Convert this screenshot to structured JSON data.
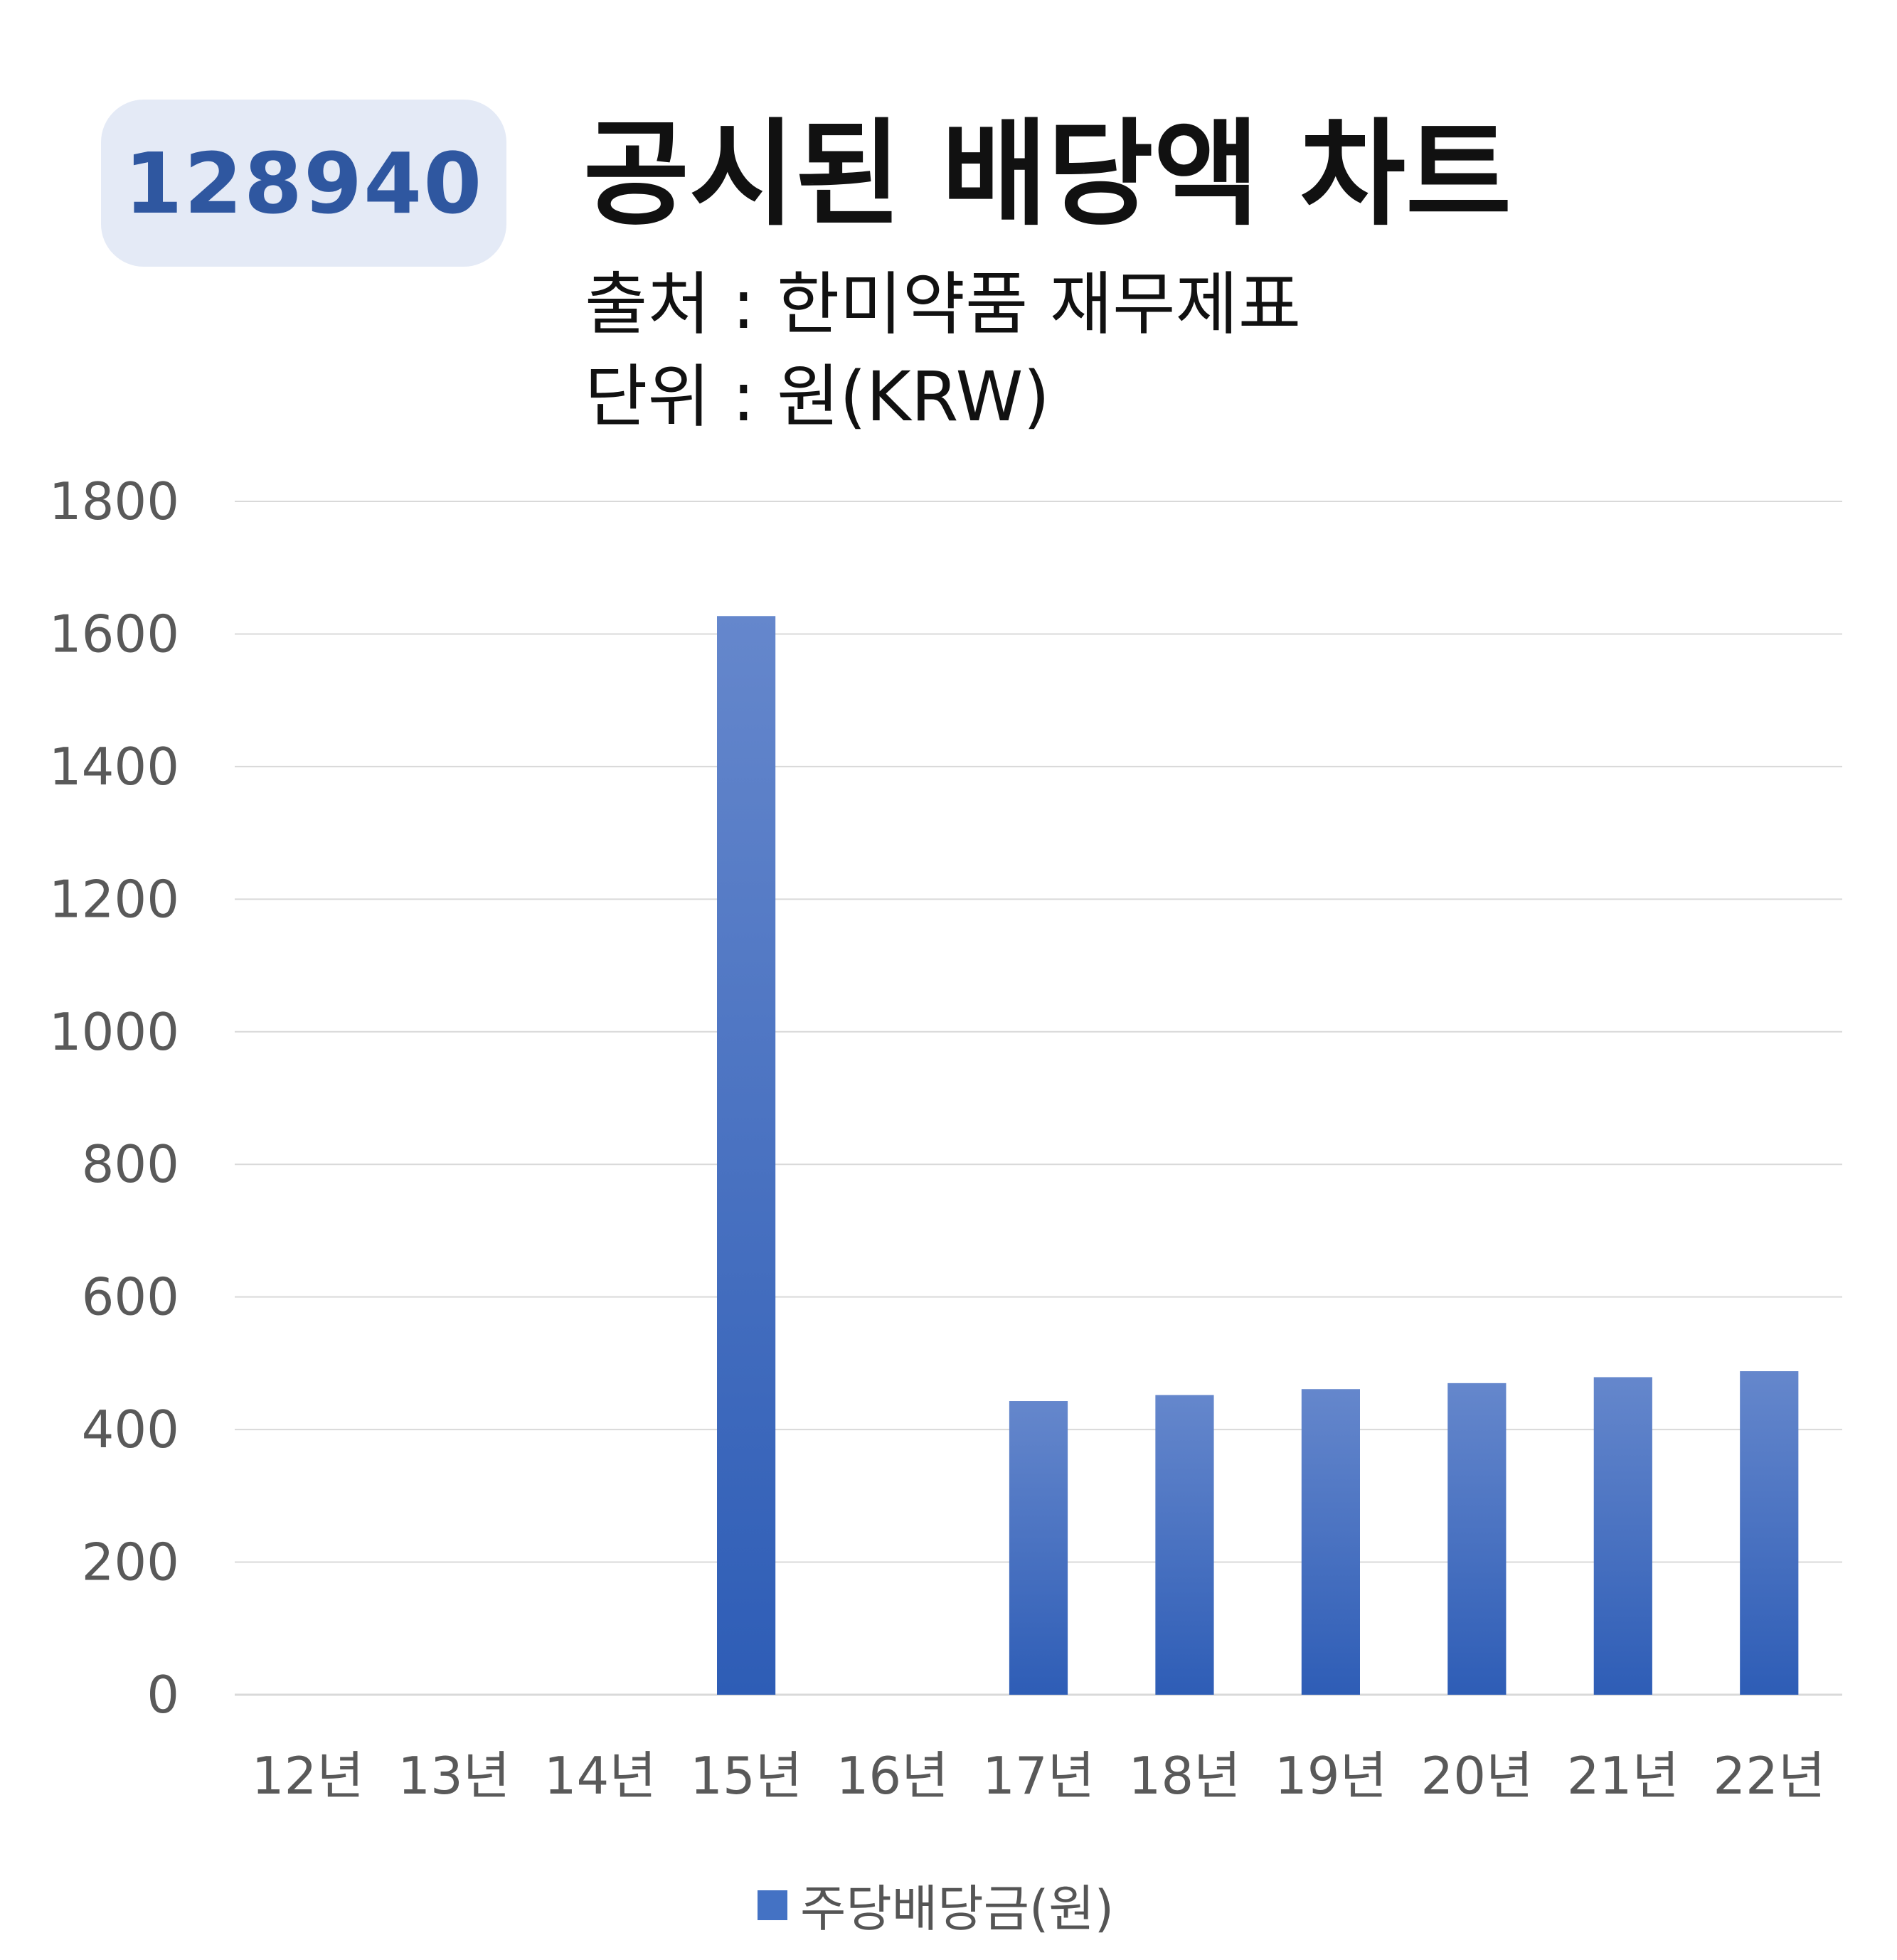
{
  "badge": {
    "code": "128940"
  },
  "header": {
    "title": "공시된 배당액 차트",
    "source": "출처 : 한미약품 재무제표",
    "unit": "단위 : 원(KRW)"
  },
  "chart_data": {
    "type": "bar",
    "categories": [
      "12년",
      "13년",
      "14년",
      "15년",
      "16년",
      "17년",
      "18년",
      "19년",
      "20년",
      "21년",
      "22년"
    ],
    "series": [
      {
        "name": "주당배당금(원)",
        "values": [
          0,
          0,
          0,
          1627,
          0,
          443,
          452,
          461,
          470,
          479,
          488
        ]
      }
    ],
    "ylim": [
      0,
      1800
    ],
    "yticks": [
      0,
      200,
      400,
      600,
      800,
      1000,
      1200,
      1400,
      1600,
      1800
    ],
    "grid": true,
    "legend": "bottom",
    "colors": {
      "bar_top": "#6587cc",
      "bar_bottom": "#2e5db6",
      "grid": "#d9d9d9",
      "tick": "#595959"
    }
  }
}
